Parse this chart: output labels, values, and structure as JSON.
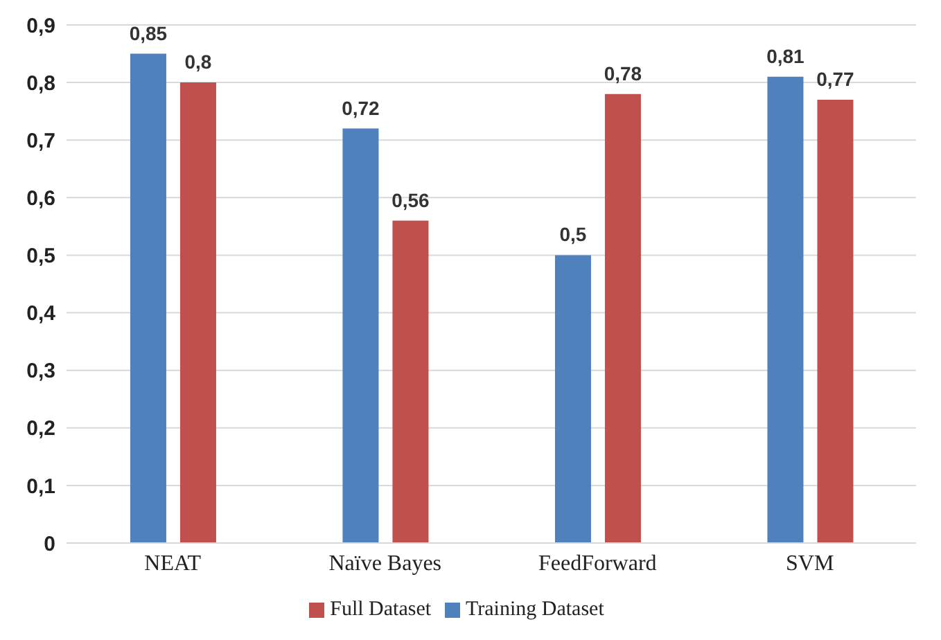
{
  "chart_data": {
    "type": "bar",
    "categories": [
      "NEAT",
      "Naïve Bayes",
      "FeedForward",
      "SVM"
    ],
    "series": [
      {
        "name": "Training Dataset",
        "color": "#4f81bd",
        "values": [
          0.85,
          0.72,
          0.5,
          0.81
        ],
        "value_labels": [
          "0,85",
          "0,72",
          "0,5",
          "0,81"
        ]
      },
      {
        "name": "Full Dataset",
        "color": "#c0504d",
        "values": [
          0.8,
          0.56,
          0.78,
          0.77
        ],
        "value_labels": [
          "0,8",
          "0,56",
          "0,78",
          "0,77"
        ]
      }
    ],
    "ylim": [
      0,
      0.9
    ],
    "yticks": [
      0,
      {
        "value": 0.1,
        "label": "0,1"
      },
      {
        "value": 0.2,
        "label": "0,2"
      },
      {
        "value": 0.3,
        "label": "0,3"
      },
      {
        "value": 0.4,
        "label": "0,4"
      },
      {
        "value": 0.5,
        "label": "0,5"
      },
      {
        "value": 0.6,
        "label": "0,6"
      },
      {
        "value": 0.7,
        "label": "0,7"
      },
      {
        "value": 0.8,
        "label": "0,8"
      },
      {
        "value": 0.9,
        "label": "0,9"
      }
    ],
    "grid": "y",
    "legend": "bottom"
  }
}
